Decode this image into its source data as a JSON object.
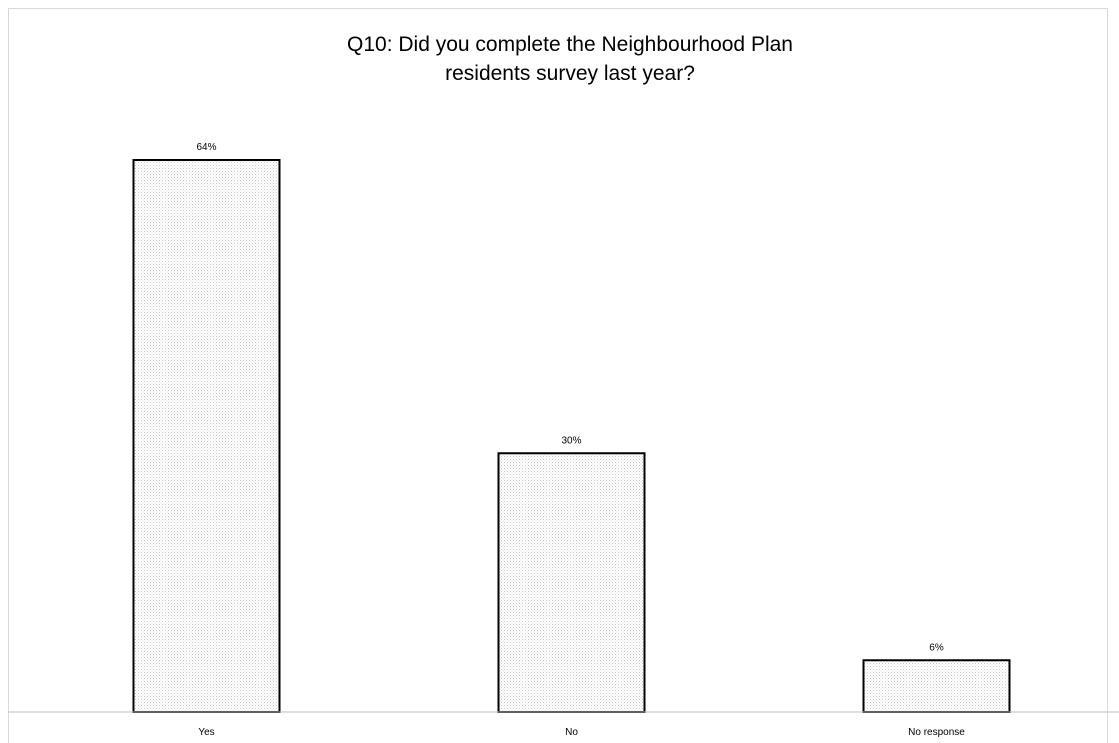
{
  "chart_data": {
    "type": "bar",
    "title": "Q10: Did you complete the Neighbourhood Plan residents survey last year?",
    "title_lines": [
      "Q10: Did you complete the Neighbourhood Plan",
      "residents survey last year?"
    ],
    "categories": [
      "Yes",
      "No",
      "No response"
    ],
    "values": [
      64,
      30,
      6
    ],
    "data_labels": [
      "64%",
      "30%",
      "6%"
    ],
    "xlabel": "",
    "ylabel": "",
    "ylim": [
      0,
      64
    ],
    "grid": false,
    "legend": "none",
    "bar_fill": "dotted light grey pattern",
    "bar_edge_color": "#000000"
  }
}
